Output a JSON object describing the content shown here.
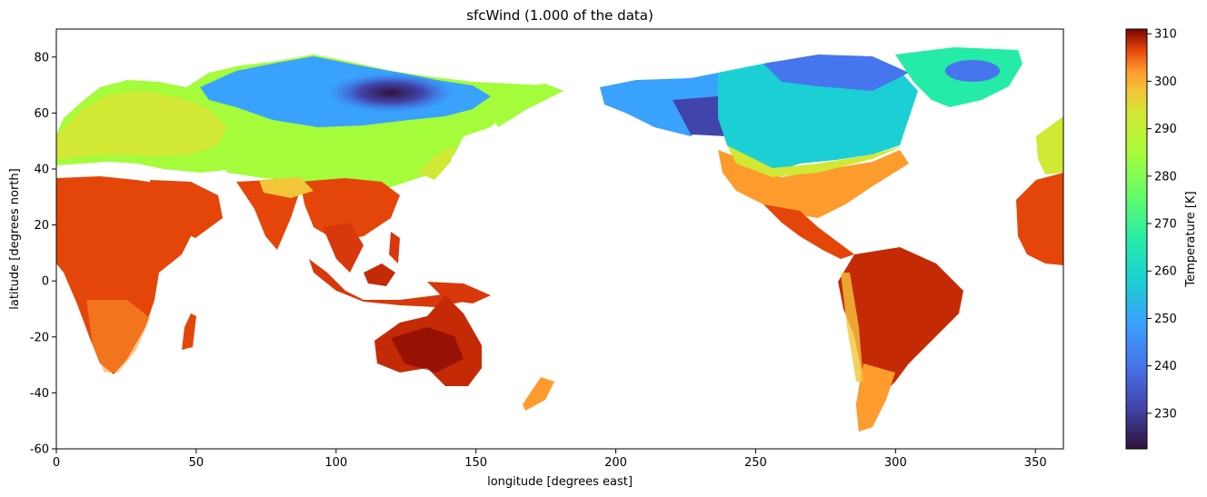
{
  "chart_data": {
    "type": "heatmap",
    "title": "sfcWind (1.000 of the data)",
    "xlabel": "longitude [degrees east]",
    "ylabel": "latitude [degrees north]",
    "xlim": [
      0,
      360
    ],
    "ylim": [
      -60,
      90
    ],
    "x_ticks": [
      0,
      50,
      100,
      150,
      200,
      250,
      300,
      350
    ],
    "y_ticks": [
      -60,
      -40,
      -20,
      0,
      20,
      40,
      60,
      80
    ],
    "grid": false,
    "colorbar": {
      "label": "Temperature [K]",
      "range": [
        222.5,
        311
      ],
      "ticks": [
        230,
        240,
        250,
        260,
        270,
        280,
        290,
        300,
        310
      ],
      "colormap": "turbo"
    },
    "regions": [
      {
        "name": "Africa",
        "approx_temperature_K": 300
      },
      {
        "name": "Arabia / India",
        "approx_temperature_K": 300
      },
      {
        "name": "Europe",
        "approx_temperature_K": 272
      },
      {
        "name": "Siberia",
        "approx_temperature_K": 240
      },
      {
        "name": "Central Siberia (cold core)",
        "approx_temperature_K": 232
      },
      {
        "name": "Southeast Asia / Indonesia",
        "approx_temperature_K": 300
      },
      {
        "name": "Australia",
        "approx_temperature_K": 302
      },
      {
        "name": "New Zealand",
        "approx_temperature_K": 285
      },
      {
        "name": "Alaska / Yukon",
        "approx_temperature_K": 238
      },
      {
        "name": "Canada",
        "approx_temperature_K": 248
      },
      {
        "name": "Greenland",
        "approx_temperature_K": 245
      },
      {
        "name": "United States",
        "approx_temperature_K": 285
      },
      {
        "name": "Mexico / Central America",
        "approx_temperature_K": 297
      },
      {
        "name": "South America",
        "approx_temperature_K": 298
      },
      {
        "name": "Patagonia",
        "approx_temperature_K": 282
      }
    ]
  }
}
